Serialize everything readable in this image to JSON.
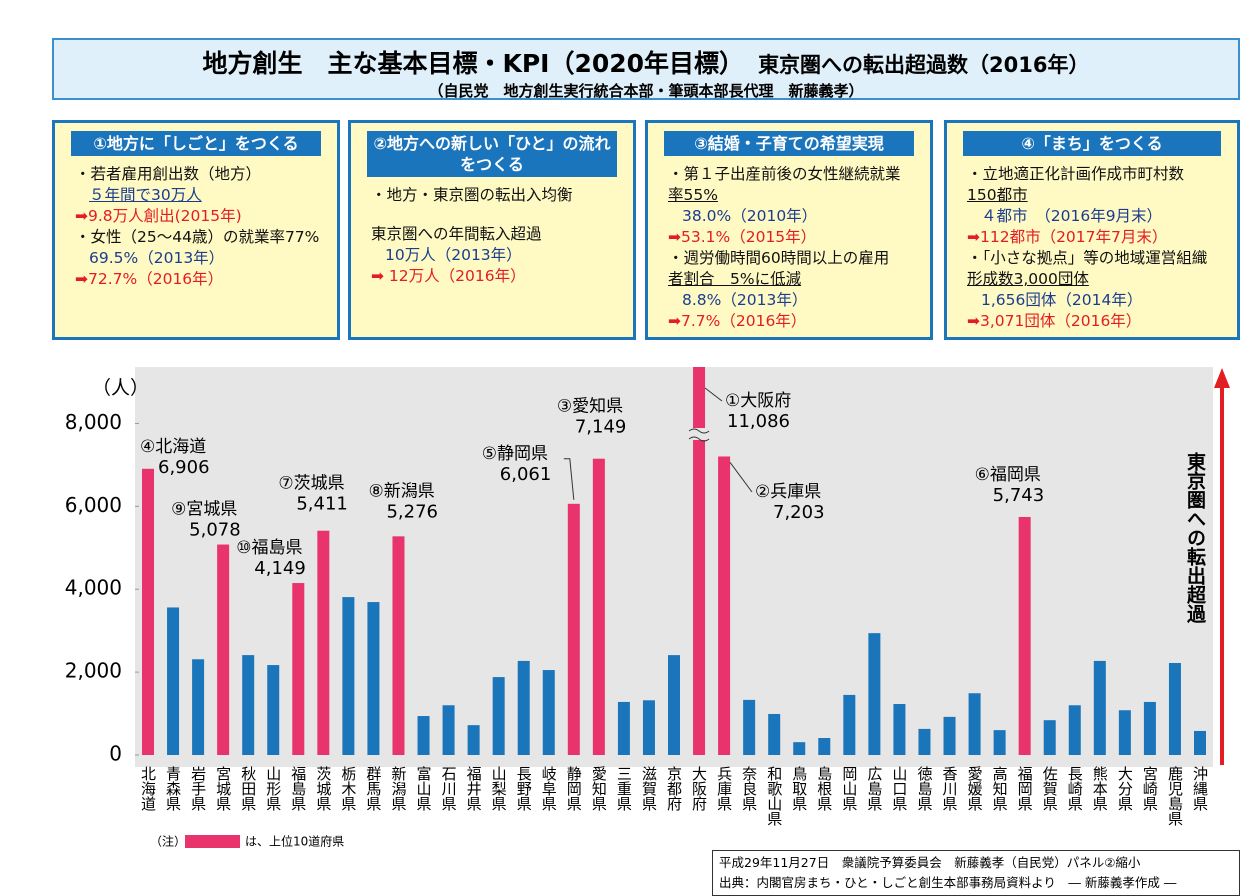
{
  "header": {
    "title": "地方創生　主な基本目標・KPI（2020年目標）",
    "chart_title": "東京圏への転出超過数（2016年）",
    "subtitle": "（自民党　地方創生実行統合本部・筆頭本部長代理　新藤義孝）"
  },
  "panels": [
    {
      "heading": "①地方に「しごと」をつくる",
      "lines": [
        "・若者雇用創出数（地方）",
        "５年間で30万人",
        "➡9.8万人創出(2015年)",
        "・女性（25～44歳）の就業率77%",
        "69.5%（2013年）",
        "➡72.7%（2016年）"
      ]
    },
    {
      "heading": "②地方への新しい「ひと」の流れをつくる",
      "lines": [
        "・地方・東京圏の転出入均衡",
        "東京圏への年間転入超過",
        "10万人（2013年）",
        "➡ 12万人（2016年）"
      ]
    },
    {
      "heading": "③結婚・子育ての希望実現",
      "lines": [
        "・第１子出産前後の女性継続就業",
        "率55%",
        "38.0%（2010年）",
        "➡53.1%（2015年）",
        "・週労働時間60時間以上の雇用",
        "者割合　5%に低減",
        "8.8%（2013年）",
        "➡7.7%（2016年）"
      ]
    },
    {
      "heading": "④「まち」をつくる",
      "lines": [
        "・立地適正化計画作成市町村数",
        "150都市",
        "４都市　（2016年9月末）",
        "➡112都市（2017年7月末）",
        "・「小さな拠点」等の地域運営組織",
        "形成数3,000団体",
        "1,656団体（2014年）",
        "➡3,071団体（2016年）"
      ]
    }
  ],
  "chart_data": {
    "type": "bar",
    "y_label": "（人）",
    "side_label": "東京圏への転出超過",
    "categories": [
      "北海道",
      "青森県",
      "岩手県",
      "宮城県",
      "秋田県",
      "山形県",
      "福島県",
      "茨城県",
      "栃木県",
      "群馬県",
      "新潟県",
      "富山県",
      "石川県",
      "福井県",
      "山梨県",
      "長野県",
      "岐阜県",
      "静岡県",
      "愛知県",
      "三重県",
      "滋賀県",
      "京都府",
      "大阪府",
      "兵庫県",
      "奈良県",
      "和歌山県",
      "鳥取県",
      "島根県",
      "岡山県",
      "広島県",
      "山口県",
      "徳島県",
      "香川県",
      "愛媛県",
      "高知県",
      "福岡県",
      "佐賀県",
      "長崎県",
      "熊本県",
      "大分県",
      "宮崎県",
      "鹿児島県",
      "沖縄県"
    ],
    "values": [
      6906,
      3560,
      2310,
      5078,
      2410,
      2170,
      4149,
      5411,
      3810,
      3690,
      5276,
      940,
      1200,
      720,
      1880,
      2270,
      2050,
      6061,
      7149,
      1280,
      1320,
      2410,
      11086,
      7203,
      1330,
      990,
      310,
      410,
      1450,
      2940,
      1230,
      630,
      920,
      1490,
      600,
      5743,
      840,
      1200,
      2270,
      1080,
      1280,
      2220,
      580
    ],
    "value_labels": [
      "6,906",
      null,
      null,
      "5,078",
      null,
      null,
      "4,149",
      "5,411",
      null,
      null,
      "5,276",
      null,
      null,
      null,
      null,
      null,
      null,
      "6,061",
      "7,149",
      null,
      null,
      null,
      "11,086",
      "7,203",
      null,
      null,
      null,
      null,
      null,
      null,
      null,
      null,
      null,
      null,
      null,
      "5,743",
      null,
      null,
      null,
      null,
      null,
      null,
      null
    ],
    "rank_labels": [
      "④北海道",
      null,
      null,
      "⑨宮城県",
      null,
      null,
      "⑩福島県",
      "⑦茨城県",
      null,
      null,
      "⑧新潟県",
      null,
      null,
      null,
      null,
      null,
      null,
      "⑤静岡県",
      "③愛知県",
      null,
      null,
      null,
      "①大阪府",
      "②兵庫県",
      null,
      null,
      null,
      null,
      null,
      null,
      null,
      null,
      null,
      null,
      null,
      "⑥福岡県",
      null,
      null,
      null,
      null,
      null,
      null,
      null
    ],
    "colors": [
      "#e8336d",
      "#1a75bb",
      "#1a75bb",
      "#e8336d",
      "#1a75bb",
      "#1a75bb",
      "#e8336d",
      "#e8336d",
      "#1a75bb",
      "#1a75bb",
      "#e8336d",
      "#1a75bb",
      "#1a75bb",
      "#1a75bb",
      "#1a75bb",
      "#1a75bb",
      "#1a75bb",
      "#e8336d",
      "#e8336d",
      "#1a75bb",
      "#1a75bb",
      "#1a75bb",
      "#e8336d",
      "#e8336d",
      "#1a75bb",
      "#1a75bb",
      "#1a75bb",
      "#1a75bb",
      "#1a75bb",
      "#1a75bb",
      "#1a75bb",
      "#1a75bb",
      "#1a75bb",
      "#1a75bb",
      "#1a75bb",
      "#e8336d",
      "#1a75bb",
      "#1a75bb",
      "#1a75bb",
      "#1a75bb",
      "#1a75bb",
      "#1a75bb",
      "#1a75bb"
    ],
    "ylim": [
      0,
      9000
    ],
    "yticks": [
      0,
      {
        "value": 2000,
        "label": "2,000"
      },
      {
        "value": 4000,
        "label": "4,000"
      },
      {
        "value": 6000,
        "label": "6,000"
      },
      {
        "value": 8000,
        "label": "8,000"
      }
    ],
    "legend": {
      "note": "（注）",
      "text": "は、上位10道府県",
      "color": "#e8336d"
    }
  },
  "footer": [
    "平成29年11月27日　衆議院予算委員会　新藤義孝（自民党）パネル②縮小",
    "出典：内閣官房まち・ひと・しごと創生本部事務局資料より　― 新藤義孝作成 ―"
  ]
}
